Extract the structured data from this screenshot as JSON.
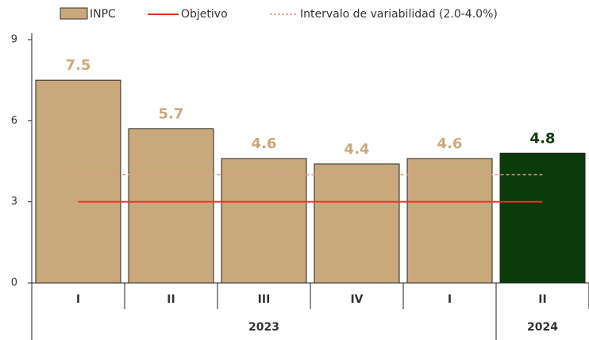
{
  "chart_data": {
    "type": "bar",
    "legend": {
      "bars": "INPC",
      "target": "Objetivo",
      "interval": "Intervalo de variabilidad (2.0-4.0%)"
    },
    "categories": [
      "I",
      "II",
      "III",
      "IV",
      "I",
      "II"
    ],
    "groups": [
      {
        "label": "2023",
        "span": 5
      },
      {
        "label": "2024",
        "span": 1
      }
    ],
    "values": [
      7.5,
      5.7,
      4.6,
      4.4,
      4.6,
      4.8
    ],
    "colors": [
      "#c9a97c",
      "#c9a97c",
      "#c9a97c",
      "#c9a97c",
      "#c9a97c",
      "#0b3a0b"
    ],
    "label_colors": [
      "#c9a97c",
      "#c9a97c",
      "#c9a97c",
      "#c9a97c",
      "#c9a97c",
      "#0b3a0b"
    ],
    "target": 3.0,
    "target_color": "#e8322d",
    "interval_line": 4.0,
    "interval_color": "#d99a8a",
    "ylim": [
      0,
      9
    ],
    "yticks": [
      0,
      3,
      6,
      9
    ]
  }
}
